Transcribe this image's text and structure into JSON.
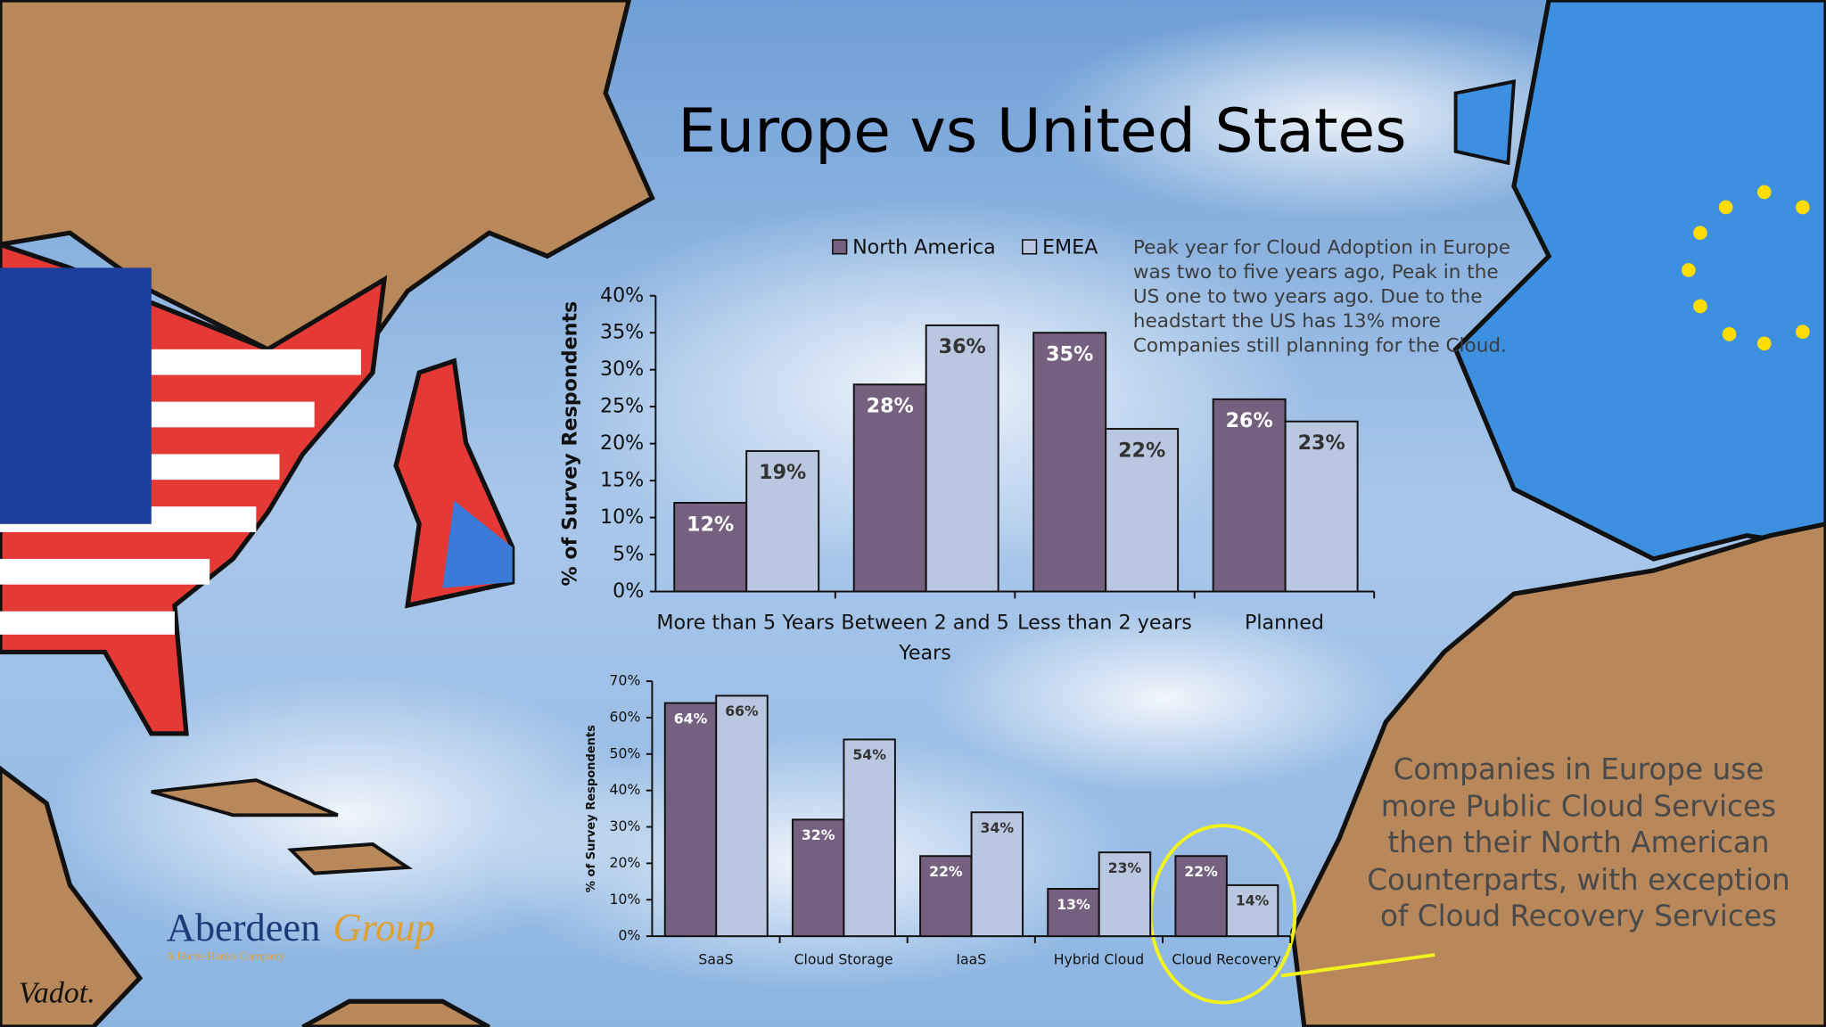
{
  "title": "Europe vs United States",
  "logo": {
    "name": "Aberdeen",
    "suffix": "Group",
    "tagline": "A Harte-Hanks Company"
  },
  "signature": "Vadot.",
  "chart_data": [
    {
      "type": "bar",
      "categories": [
        "More than 5 Years",
        "Between 2 and 5 Years",
        "Less than 2 years",
        "Planned"
      ],
      "series": [
        {
          "name": "North America",
          "color": "#76607f",
          "values": [
            12,
            28,
            35,
            26
          ],
          "value_labels": [
            "12%",
            "28%",
            "35%",
            "26%"
          ]
        },
        {
          "name": "EMEA",
          "color": "#b9c8e0",
          "values": [
            19,
            36,
            22,
            23
          ],
          "value_labels": [
            "19%",
            "36%",
            "22%",
            "23%"
          ]
        }
      ],
      "ylabel": "% of Survey Respondents",
      "ylim": [
        0,
        40
      ],
      "yticks": [
        {
          "value": 0,
          "label": "0%"
        },
        {
          "value": 5,
          "label": "5%"
        },
        {
          "value": 10,
          "label": "10%"
        },
        {
          "value": 15,
          "label": "15%"
        },
        {
          "value": 20,
          "label": "20%"
        },
        {
          "value": 25,
          "label": "25%"
        },
        {
          "value": 30,
          "label": "30%"
        },
        {
          "value": 35,
          "label": "35%"
        },
        {
          "value": 40,
          "label": "40%"
        }
      ],
      "legend": "top",
      "annotation": "Peak year for Cloud Adoption in Europe was two to five years ago, Peak in the US one to two years ago. Due to the headstart the US has 13% more Companies still planning for the Cloud."
    },
    {
      "type": "bar",
      "categories": [
        "SaaS",
        "Cloud Storage",
        "IaaS",
        "Hybrid Cloud",
        "Cloud Recovery"
      ],
      "series": [
        {
          "color": "#76607f",
          "values": [
            64,
            32,
            22,
            13,
            22
          ],
          "value_labels": [
            "64%",
            "32%",
            "22%",
            "13%",
            "22%"
          ]
        },
        {
          "color": "#b9c8e0",
          "values": [
            66,
            54,
            34,
            23,
            14
          ],
          "value_labels": [
            "66%",
            "54%",
            "34%",
            "23%",
            "14%"
          ]
        }
      ],
      "ylabel": "% of Survey Respondents",
      "ylim": [
        0,
        70
      ],
      "yticks": [
        {
          "value": 0,
          "label": "0%"
        },
        {
          "value": 10,
          "label": "10%"
        },
        {
          "value": 20,
          "label": "20%"
        },
        {
          "value": 30,
          "label": "30%"
        },
        {
          "value": 40,
          "label": "40%"
        },
        {
          "value": 50,
          "label": "50%"
        },
        {
          "value": 60,
          "label": "60%"
        },
        {
          "value": 70,
          "label": "70%"
        }
      ],
      "annotation": "Companies in Europe use more Public Cloud Services then their North American Counterparts, with exception of Cloud Recovery Services"
    }
  ]
}
